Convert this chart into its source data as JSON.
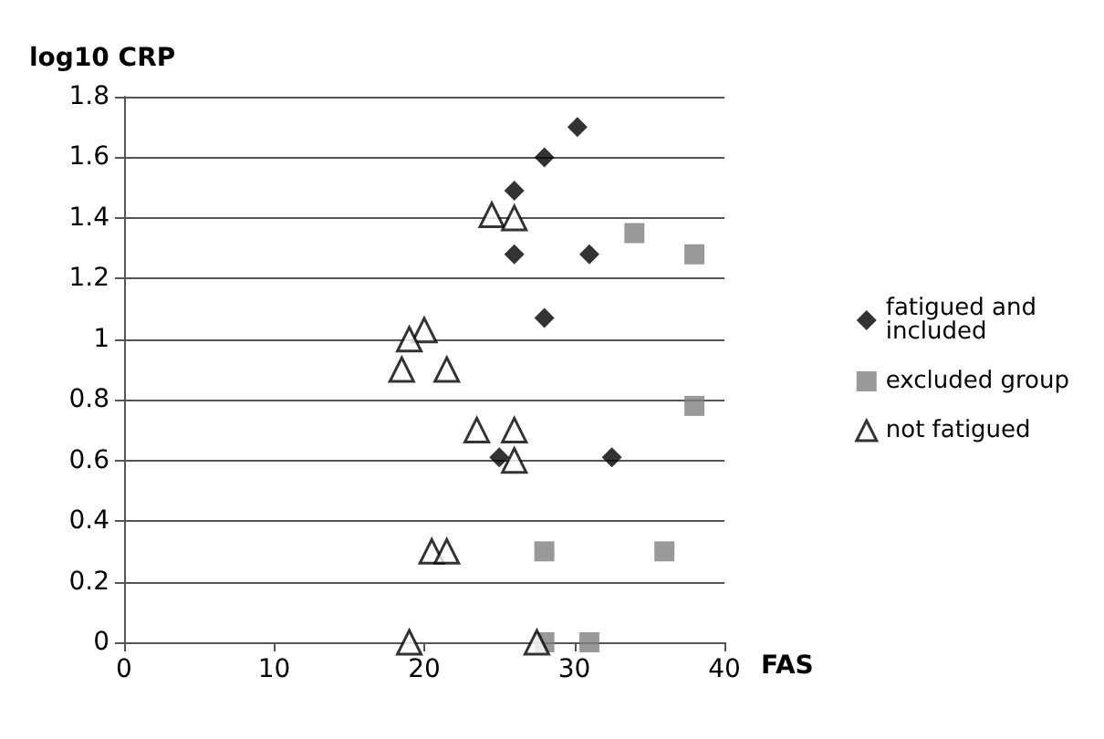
{
  "chart_data": {
    "type": "scatter",
    "xlabel": "FAS",
    "ylabel": "log10 CRP",
    "xlim": [
      0,
      40
    ],
    "xticks": [
      0,
      10,
      20,
      30,
      40
    ],
    "ylim": [
      0,
      1.8
    ],
    "yticks": [
      0,
      0.2,
      0.4,
      0.6,
      0.8,
      1,
      1.2,
      1.4,
      1.6,
      1.8
    ],
    "grid": "y",
    "legend": "right",
    "series": [
      {
        "name": "fatigued and included",
        "color": "#000000",
        "marker": "diamond",
        "x": [
          26,
          28,
          30.2,
          26,
          31,
          28,
          25,
          32.5
        ],
        "values": [
          1.49,
          1.6,
          1.7,
          1.28,
          1.28,
          1.07,
          0.61,
          0.61
        ]
      },
      {
        "name": "excluded group",
        "color": "#808080",
        "marker": "square",
        "x": [
          34,
          38,
          38,
          28,
          36,
          28,
          31
        ],
        "values": [
          1.35,
          1.28,
          0.78,
          0.3,
          0.3,
          0,
          0
        ]
      },
      {
        "name": "not fatigued",
        "color": "#000000",
        "marker": "triangle",
        "x": [
          24.5,
          26,
          20,
          19,
          18.5,
          21.5,
          23.5,
          26,
          26,
          20.5,
          21.5,
          19,
          27.5
        ],
        "values": [
          1.41,
          1.4,
          1.03,
          1,
          0.9,
          0.9,
          0.7,
          0.7,
          0.6,
          0.3,
          0.3,
          0,
          0
        ]
      }
    ]
  }
}
